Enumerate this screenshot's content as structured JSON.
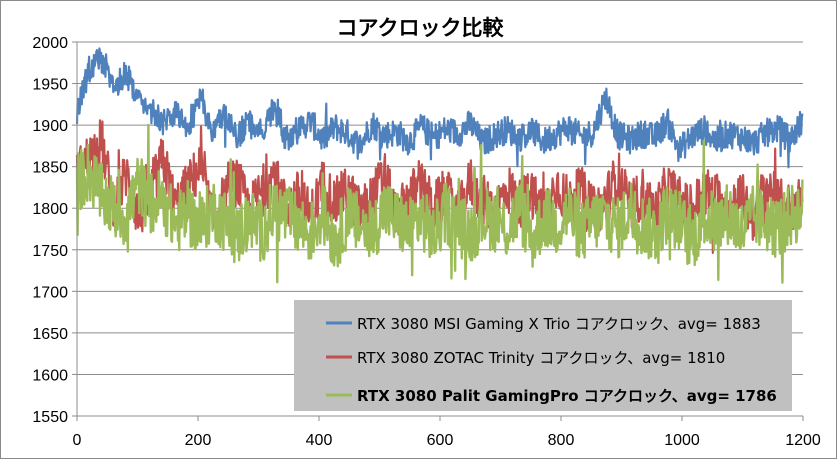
{
  "chart_data": {
    "type": "line",
    "title": "コアクロック比較",
    "xlim": [
      0,
      1200
    ],
    "ylim": [
      1550,
      2000
    ],
    "x_ticks": [
      0,
      200,
      400,
      600,
      800,
      1000,
      1200
    ],
    "y_ticks": [
      1550,
      1600,
      1650,
      1700,
      1750,
      1800,
      1850,
      1900,
      1950,
      2000
    ],
    "x_tick_labels": [
      "0",
      "200",
      "400",
      "600",
      "800",
      "1000",
      "1200"
    ],
    "y_tick_labels": [
      "1550",
      "1600",
      "1650",
      "1700",
      "1750",
      "1800",
      "1850",
      "1900",
      "1950",
      "2000"
    ],
    "grid": "horizontal",
    "legend_position": "bottom-right",
    "samples": 1200,
    "series": [
      {
        "name": "RTX 3080 MSI Gaming X Trio コアクロック、avg= 1883",
        "color": "#4f81bd",
        "avg": 1883,
        "values": [
          1920,
          1968,
          1980,
          1948,
          1962,
          1935,
          1918,
          1905,
          1912,
          1898,
          1930,
          1895,
          1908,
          1887,
          1902,
          1890,
          1918,
          1885,
          1895,
          1905,
          1882,
          1898,
          1890,
          1875,
          1902,
          1888,
          1892,
          1880,
          1898,
          1885,
          1895,
          1890,
          1902,
          1878,
          1888,
          1895,
          1885,
          1893,
          1880,
          1890,
          1898,
          1885,
          1892,
          1935,
          1888,
          1882,
          1890,
          1885,
          1905,
          1870,
          1886,
          1895,
          1880,
          1890,
          1886,
          1878,
          1890,
          1896,
          1882,
          1905
        ]
      },
      {
        "name": "RTX 3080 ZOTAC Trinity コアクロック、avg= 1810",
        "color": "#c0504d",
        "avg": 1810,
        "values": [
          1840,
          1862,
          1880,
          1800,
          1842,
          1790,
          1818,
          1860,
          1800,
          1825,
          1850,
          1786,
          1812,
          1835,
          1795,
          1820,
          1840,
          1800,
          1815,
          1790,
          1830,
          1805,
          1822,
          1795,
          1810,
          1840,
          1785,
          1815,
          1825,
          1800,
          1818,
          1790,
          1832,
          1810,
          1795,
          1825,
          1805,
          1815,
          1790,
          1830,
          1806,
          1820,
          1795,
          1810,
          1840,
          1800,
          1818,
          1792,
          1826,
          1808,
          1795,
          1822,
          1810,
          1800,
          1815,
          1790,
          1828,
          1806,
          1800,
          1812
        ]
      },
      {
        "name": "RTX 3080 Palit GamingPro コアクロック、avg= 1786",
        "color": "#9bbb59",
        "avg": 1786,
        "values": [
          1830,
          1845,
          1815,
          1800,
          1790,
          1830,
          1805,
          1812,
          1780,
          1795,
          1775,
          1800,
          1785,
          1765,
          1790,
          1770,
          1800,
          1790,
          1780,
          1770,
          1795,
          1760,
          1790,
          1780,
          1770,
          1800,
          1785,
          1775,
          1790,
          1765,
          1795,
          1780,
          1770,
          1790,
          1785,
          1775,
          1800,
          1760,
          1790,
          1780,
          1795,
          1770,
          1785,
          1790,
          1775,
          1800,
          1780,
          1770,
          1795,
          1785,
          1760,
          1790,
          1780,
          1795,
          1770,
          1790,
          1785,
          1775,
          1790,
          1800
        ]
      }
    ]
  }
}
